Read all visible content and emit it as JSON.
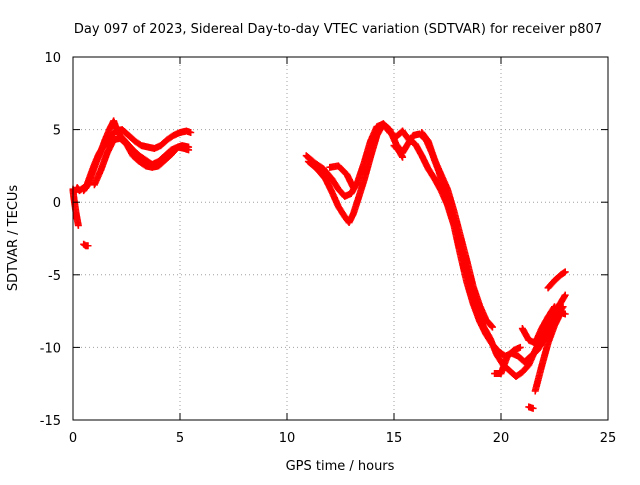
{
  "chart_data": {
    "type": "scatter",
    "title": "Day 097 of 2023, Sidereal Day-to-day VTEC variation (SDTVAR) for receiver p807",
    "xlabel": "GPS time / hours",
    "ylabel": "SDTVAR / TECUs",
    "xlim": [
      0,
      25
    ],
    "ylim": [
      -15,
      10
    ],
    "xticks": [
      0,
      5,
      10,
      15,
      20,
      25
    ],
    "yticks": [
      -15,
      -10,
      -5,
      0,
      5,
      10
    ],
    "grid": true,
    "marker": "+",
    "color": "#ff0000",
    "series": [
      {
        "name": "SDTVAR",
        "tracks": [
          [
            [
              0.0,
              0.8
            ],
            [
              0.05,
              0.2
            ],
            [
              0.1,
              -0.3
            ],
            [
              0.15,
              -0.8
            ],
            [
              0.2,
              -1.2
            ],
            [
              0.25,
              -1.6
            ]
          ],
          [
            [
              0.0,
              0.9
            ],
            [
              0.1,
              0.7
            ],
            [
              0.2,
              1.0
            ],
            [
              0.3,
              0.8
            ],
            [
              0.4,
              0.9
            ],
            [
              0.5,
              1.0
            ]
          ],
          [
            [
              0.5,
              -2.9
            ],
            [
              0.6,
              -3.0
            ],
            [
              0.7,
              -3.0
            ]
          ],
          [
            [
              0.5,
              0.8
            ],
            [
              0.7,
              1.2
            ],
            [
              0.9,
              2.0
            ],
            [
              1.1,
              2.8
            ],
            [
              1.3,
              3.5
            ],
            [
              1.5,
              4.3
            ],
            [
              1.7,
              5.0
            ],
            [
              1.9,
              5.6
            ],
            [
              2.0,
              5.2
            ],
            [
              2.2,
              4.6
            ],
            [
              2.5,
              4.1
            ],
            [
              2.8,
              3.6
            ],
            [
              3.1,
              3.2
            ],
            [
              3.4,
              2.9
            ],
            [
              3.7,
              2.6
            ],
            [
              4.0,
              2.8
            ],
            [
              4.3,
              3.2
            ],
            [
              4.6,
              3.6
            ],
            [
              4.9,
              3.8
            ],
            [
              5.1,
              3.9
            ],
            [
              5.4,
              3.8
            ]
          ],
          [
            [
              0.6,
              1.0
            ],
            [
              0.8,
              1.8
            ],
            [
              1.0,
              2.6
            ],
            [
              1.2,
              3.3
            ],
            [
              1.4,
              3.8
            ],
            [
              1.6,
              4.1
            ],
            [
              1.8,
              4.6
            ],
            [
              2.0,
              4.9
            ],
            [
              2.3,
              5.0
            ],
            [
              2.6,
              4.6
            ],
            [
              2.9,
              4.2
            ],
            [
              3.2,
              3.9
            ],
            [
              3.5,
              3.8
            ],
            [
              3.8,
              3.7
            ],
            [
              4.1,
              3.9
            ],
            [
              4.4,
              4.3
            ],
            [
              4.7,
              4.6
            ],
            [
              5.0,
              4.8
            ],
            [
              5.3,
              4.9
            ],
            [
              5.5,
              4.8
            ]
          ],
          [
            [
              1.0,
              1.2
            ],
            [
              1.3,
              2.2
            ],
            [
              1.6,
              3.4
            ],
            [
              1.9,
              4.3
            ],
            [
              2.2,
              4.4
            ],
            [
              2.5,
              4.0
            ],
            [
              2.8,
              3.2
            ],
            [
              3.1,
              2.8
            ],
            [
              3.4,
              2.5
            ],
            [
              3.7,
              2.4
            ],
            [
              4.0,
              2.5
            ],
            [
              4.3,
              2.9
            ],
            [
              4.6,
              3.3
            ],
            [
              4.9,
              3.8
            ],
            [
              5.2,
              3.7
            ],
            [
              5.4,
              3.6
            ]
          ],
          [
            [
              10.9,
              3.2
            ],
            [
              11.3,
              2.7
            ],
            [
              11.7,
              2.3
            ],
            [
              12.1,
              1.6
            ],
            [
              12.4,
              0.9
            ],
            [
              12.7,
              0.4
            ],
            [
              13.0,
              0.6
            ],
            [
              13.3,
              1.4
            ],
            [
              13.6,
              2.7
            ],
            [
              13.9,
              4.2
            ],
            [
              14.2,
              5.2
            ],
            [
              14.5,
              5.4
            ],
            [
              14.8,
              4.8
            ],
            [
              15.1,
              4.5
            ],
            [
              15.4,
              4.9
            ],
            [
              15.7,
              4.3
            ],
            [
              16.0,
              4.0
            ],
            [
              16.3,
              3.2
            ],
            [
              16.6,
              2.3
            ],
            [
              16.9,
              1.6
            ],
            [
              17.2,
              0.8
            ],
            [
              17.5,
              -0.2
            ],
            [
              17.8,
              -1.6
            ],
            [
              18.1,
              -3.6
            ],
            [
              18.4,
              -5.5
            ],
            [
              18.7,
              -7.0
            ],
            [
              19.0,
              -8.2
            ],
            [
              19.3,
              -9.1
            ],
            [
              19.6,
              -9.8
            ],
            [
              19.9,
              -10.3
            ],
            [
              20.2,
              -10.6
            ],
            [
              20.5,
              -10.4
            ],
            [
              20.8,
              -10.6
            ],
            [
              21.1,
              -11.0
            ],
            [
              21.4,
              -10.6
            ],
            [
              21.7,
              -10.2
            ],
            [
              22.0,
              -9.5
            ],
            [
              22.3,
              -8.7
            ],
            [
              22.6,
              -7.8
            ],
            [
              22.9,
              -7.2
            ]
          ],
          [
            [
              11.0,
              2.8
            ],
            [
              11.4,
              2.3
            ],
            [
              11.8,
              1.6
            ],
            [
              12.1,
              0.7
            ],
            [
              12.4,
              -0.3
            ],
            [
              12.7,
              -1.0
            ],
            [
              12.9,
              -1.4
            ],
            [
              13.1,
              -0.8
            ],
            [
              13.3,
              0.1
            ],
            [
              13.6,
              1.5
            ],
            [
              13.9,
              3.1
            ],
            [
              14.2,
              4.6
            ],
            [
              14.5,
              5.4
            ],
            [
              14.8,
              5.0
            ],
            [
              15.1,
              4.0
            ],
            [
              15.4,
              3.4
            ],
            [
              15.6,
              3.9
            ],
            [
              15.9,
              4.6
            ],
            [
              16.2,
              4.7
            ],
            [
              16.5,
              4.3
            ],
            [
              16.8,
              3.3
            ],
            [
              17.1,
              2.1
            ],
            [
              17.4,
              0.7
            ],
            [
              17.7,
              -0.8
            ],
            [
              18.0,
              -2.3
            ],
            [
              18.3,
              -4.3
            ],
            [
              18.6,
              -6.1
            ],
            [
              18.9,
              -7.6
            ],
            [
              19.2,
              -8.6
            ],
            [
              19.5,
              -9.4
            ],
            [
              19.8,
              -10.5
            ],
            [
              20.1,
              -11.2
            ],
            [
              20.4,
              -11.6
            ],
            [
              20.7,
              -12.0
            ],
            [
              21.0,
              -11.7
            ],
            [
              21.3,
              -11.2
            ],
            [
              21.6,
              -10.2
            ],
            [
              21.9,
              -9.3
            ],
            [
              22.2,
              -8.3
            ],
            [
              22.5,
              -7.5
            ],
            [
              22.8,
              -6.9
            ],
            [
              23.0,
              -6.4
            ]
          ],
          [
            [
              12.0,
              2.4
            ],
            [
              12.4,
              2.5
            ],
            [
              12.8,
              1.9
            ],
            [
              13.1,
              1.0
            ]
          ],
          [
            [
              16.3,
              4.8
            ],
            [
              16.6,
              4.2
            ],
            [
              16.9,
              2.9
            ],
            [
              17.2,
              1.9
            ],
            [
              17.5,
              0.9
            ],
            [
              17.8,
              -0.6
            ],
            [
              18.1,
              -2.3
            ],
            [
              18.4,
              -4.0
            ],
            [
              18.7,
              -5.8
            ],
            [
              19.0,
              -7.1
            ],
            [
              19.3,
              -8.1
            ],
            [
              19.6,
              -8.6
            ]
          ],
          [
            [
              19.7,
              -11.8
            ],
            [
              20.0,
              -11.8
            ],
            [
              20.3,
              -10.6
            ],
            [
              20.6,
              -10.2
            ],
            [
              20.9,
              -10.0
            ]
          ],
          [
            [
              21.0,
              -8.7
            ],
            [
              21.3,
              -9.5
            ],
            [
              21.6,
              -9.7
            ],
            [
              21.9,
              -8.7
            ],
            [
              22.2,
              -7.9
            ],
            [
              22.5,
              -7.2
            ]
          ],
          [
            [
              21.6,
              -13.0
            ],
            [
              21.9,
              -11.3
            ],
            [
              22.2,
              -9.7
            ],
            [
              22.5,
              -8.5
            ],
            [
              22.8,
              -7.6
            ],
            [
              23.0,
              -7.7
            ]
          ],
          [
            [
              22.2,
              -5.9
            ],
            [
              22.5,
              -5.4
            ],
            [
              22.8,
              -5.0
            ],
            [
              23.0,
              -4.8
            ]
          ],
          [
            [
              21.3,
              -14.1
            ],
            [
              21.5,
              -14.2
            ]
          ],
          [
            [
              15.0,
              3.9
            ],
            [
              15.2,
              3.6
            ],
            [
              15.4,
              3.1
            ]
          ]
        ]
      }
    ]
  }
}
